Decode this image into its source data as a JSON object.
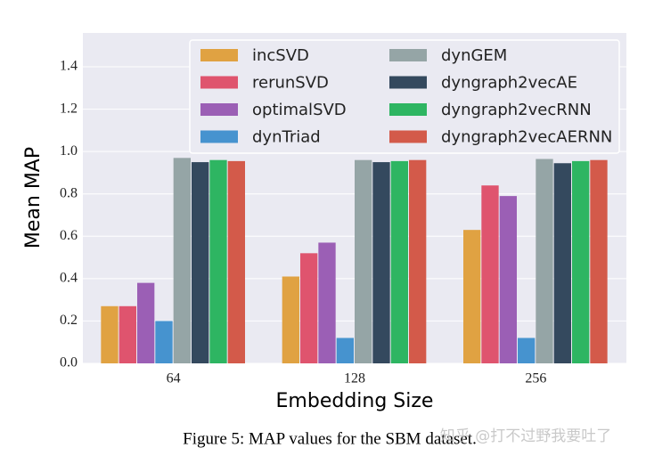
{
  "chart_data": {
    "type": "bar",
    "xlabel": "Embedding Size",
    "ylabel": "Mean MAP",
    "caption": "Figure 5: MAP values for the SBM dataset.",
    "watermark": "知乎 @打不过野我要吐了",
    "categories": [
      "64",
      "128",
      "256"
    ],
    "series": [
      {
        "name": "incSVD",
        "color": "#e0a242",
        "values": [
          0.27,
          0.41,
          0.63
        ]
      },
      {
        "name": "rerunSVD",
        "color": "#df546e",
        "values": [
          0.27,
          0.52,
          0.84
        ]
      },
      {
        "name": "optimalSVD",
        "color": "#9b5fb5",
        "values": [
          0.38,
          0.57,
          0.79
        ]
      },
      {
        "name": "dynTriad",
        "color": "#4693cf",
        "values": [
          0.2,
          0.12,
          0.12
        ]
      },
      {
        "name": "dynGEM",
        "color": "#95a5a6",
        "values": [
          0.97,
          0.96,
          0.965
        ]
      },
      {
        "name": "dyngraph2vecAE",
        "color": "#34495e",
        "values": [
          0.95,
          0.95,
          0.945
        ]
      },
      {
        "name": "dyngraph2vecRNN",
        "color": "#2eb562",
        "values": [
          0.96,
          0.955,
          0.955
        ]
      },
      {
        "name": "dyngraph2vecAERNN",
        "color": "#d35a4a",
        "values": [
          0.955,
          0.96,
          0.96
        ]
      }
    ],
    "ylim": [
      0,
      1.56
    ],
    "yticks": [
      {
        "value": 0,
        "label": "0.0"
      },
      0.2,
      0.4,
      0.6,
      0.8,
      {
        "value": 1,
        "label": "1.0"
      },
      1.2,
      1.4
    ],
    "grid": true,
    "legend": "upper right"
  }
}
